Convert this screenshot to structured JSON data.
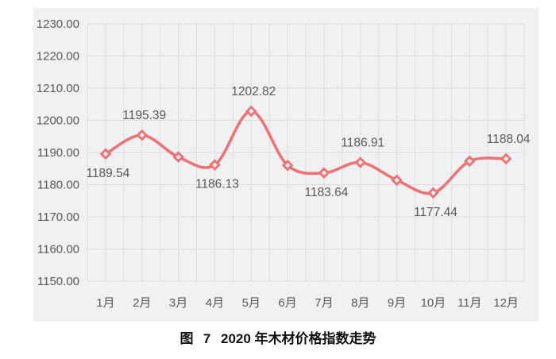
{
  "page": {
    "background": "#ffffff"
  },
  "figure_caption": {
    "label": "图 7",
    "title": "2020 年木材价格指数走势"
  },
  "chart_data": {
    "type": "line",
    "smooth": true,
    "title": "图 7 2020年木材价格指数走势",
    "categories": [
      "1月",
      "2月",
      "3月",
      "4月",
      "5月",
      "6月",
      "7月",
      "8月",
      "9月",
      "10月",
      "11月",
      "12月"
    ],
    "values": [
      1189.54,
      1195.39,
      1188.6,
      1186.13,
      1202.82,
      1186.0,
      1183.64,
      1186.91,
      1181.4,
      1177.44,
      1187.3,
      1188.04
    ],
    "data_labels": [
      "1189.54",
      "1195.39",
      null,
      "1186.13",
      "1202.82",
      null,
      "1183.64",
      "1186.91",
      null,
      "1177.44",
      null,
      "1188.04"
    ],
    "data_label_placement": [
      "below",
      "above",
      null,
      "below",
      "above",
      null,
      "below",
      "above",
      null,
      "below",
      null,
      "above"
    ],
    "y_axis": {
      "min": 1150,
      "max": 1230,
      "step": 10,
      "tick_labels": [
        "1230.00",
        "1220.00",
        "1210.00",
        "1200.00",
        "1190.00",
        "1180.00",
        "1170.00",
        "1160.00",
        "1150.00"
      ]
    },
    "x_axis": {
      "gridlines_per_category": 2
    },
    "legend": "none",
    "grid": true,
    "style": {
      "line_color": "#ee7374",
      "marker": "diamond",
      "marker_fill": "#ffffff",
      "plot_background": "#eff1f3",
      "gridline_color": "#dcddde",
      "axis_text_color": "#595959",
      "data_label_color": "#595959"
    }
  }
}
